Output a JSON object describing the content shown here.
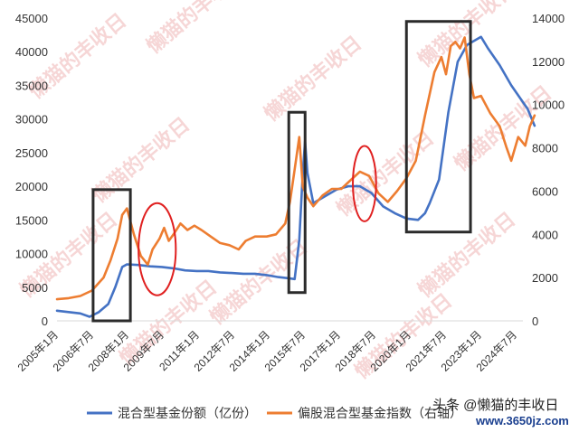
{
  "watermark": {
    "text": "懒猫的丰收日"
  },
  "credit": {
    "text": "头条 @懒猫的丰收日",
    "site": "www.3650jz.com"
  },
  "chart_data": {
    "type": "line",
    "grid": false,
    "legend_position": "bottom",
    "x_ticks": [
      "2005年1月",
      "2006年7月",
      "2008年1月",
      "2009年7月",
      "2011年1月",
      "2012年7月",
      "2014年1月",
      "2015年7月",
      "2017年1月",
      "2018年7月",
      "2020年1月",
      "2021年7月",
      "2023年1月",
      "2024年7月"
    ],
    "y_left": {
      "ticks": [
        0,
        5000,
        10000,
        15000,
        20000,
        25000,
        30000,
        35000,
        40000,
        45000
      ],
      "range": [
        0,
        45000
      ]
    },
    "y_right": {
      "ticks": [
        0,
        2000,
        4000,
        6000,
        8000,
        10000,
        12000,
        14000
      ],
      "range": [
        0,
        14000
      ]
    },
    "x_range": [
      2005.0,
      2025.0
    ],
    "series": [
      {
        "name": "混合型基金份额（亿份）",
        "axis": "left",
        "color": "#4472C4",
        "points": [
          [
            2005.0,
            1500
          ],
          [
            2005.5,
            1300
          ],
          [
            2006.0,
            1100
          ],
          [
            2006.4,
            600
          ],
          [
            2006.8,
            1300
          ],
          [
            2007.2,
            2500
          ],
          [
            2007.5,
            5000
          ],
          [
            2007.8,
            8000
          ],
          [
            2008.0,
            8400
          ],
          [
            2008.5,
            8300
          ],
          [
            2009.0,
            8100
          ],
          [
            2009.5,
            8000
          ],
          [
            2010.0,
            7800
          ],
          [
            2010.5,
            7500
          ],
          [
            2011.0,
            7400
          ],
          [
            2011.5,
            7400
          ],
          [
            2012.0,
            7200
          ],
          [
            2012.5,
            7100
          ],
          [
            2013.0,
            7000
          ],
          [
            2013.5,
            7000
          ],
          [
            2014.0,
            6800
          ],
          [
            2014.5,
            6500
          ],
          [
            2015.0,
            6300
          ],
          [
            2015.2,
            6200
          ],
          [
            2015.4,
            12000
          ],
          [
            2015.55,
            22000
          ],
          [
            2015.65,
            26700
          ],
          [
            2015.75,
            22000
          ],
          [
            2016.0,
            17500
          ],
          [
            2016.5,
            18500
          ],
          [
            2017.0,
            19500
          ],
          [
            2017.5,
            20000
          ],
          [
            2018.0,
            20000
          ],
          [
            2018.5,
            19000
          ],
          [
            2019.0,
            17000
          ],
          [
            2019.5,
            16000
          ],
          [
            2020.0,
            15200
          ],
          [
            2020.5,
            15000
          ],
          [
            2020.8,
            16000
          ],
          [
            2021.0,
            17500
          ],
          [
            2021.4,
            21000
          ],
          [
            2021.8,
            31000
          ],
          [
            2022.2,
            38500
          ],
          [
            2022.6,
            41000
          ],
          [
            2023.0,
            41800
          ],
          [
            2023.2,
            42200
          ],
          [
            2023.5,
            40500
          ],
          [
            2024.0,
            38000
          ],
          [
            2024.5,
            35000
          ],
          [
            2024.9,
            33000
          ],
          [
            2025.2,
            31500
          ],
          [
            2025.5,
            29000
          ]
        ]
      },
      {
        "name": "偏股混合型基金指数（右轴）",
        "axis": "right",
        "color": "#ED7D31",
        "points": [
          [
            2005.0,
            1000
          ],
          [
            2005.5,
            1050
          ],
          [
            2006.0,
            1150
          ],
          [
            2006.5,
            1400
          ],
          [
            2007.0,
            2000
          ],
          [
            2007.3,
            2800
          ],
          [
            2007.6,
            3800
          ],
          [
            2007.8,
            4900
          ],
          [
            2008.0,
            5200
          ],
          [
            2008.3,
            4000
          ],
          [
            2008.6,
            3000
          ],
          [
            2008.9,
            2600
          ],
          [
            2009.1,
            3300
          ],
          [
            2009.4,
            3800
          ],
          [
            2009.6,
            4300
          ],
          [
            2009.8,
            3700
          ],
          [
            2010.0,
            4000
          ],
          [
            2010.3,
            4500
          ],
          [
            2010.6,
            4200
          ],
          [
            2010.9,
            4400
          ],
          [
            2011.2,
            4200
          ],
          [
            2011.6,
            3900
          ],
          [
            2012.0,
            3600
          ],
          [
            2012.4,
            3500
          ],
          [
            2012.8,
            3300
          ],
          [
            2013.1,
            3700
          ],
          [
            2013.5,
            3900
          ],
          [
            2014.0,
            3900
          ],
          [
            2014.4,
            4000
          ],
          [
            2014.8,
            4500
          ],
          [
            2015.0,
            5500
          ],
          [
            2015.2,
            7000
          ],
          [
            2015.4,
            8500
          ],
          [
            2015.55,
            6200
          ],
          [
            2015.75,
            5700
          ],
          [
            2016.0,
            5300
          ],
          [
            2016.4,
            5800
          ],
          [
            2016.8,
            6100
          ],
          [
            2017.2,
            6100
          ],
          [
            2017.6,
            6500
          ],
          [
            2018.0,
            6900
          ],
          [
            2018.4,
            6700
          ],
          [
            2018.8,
            5900
          ],
          [
            2019.2,
            5500
          ],
          [
            2019.6,
            6000
          ],
          [
            2020.0,
            6600
          ],
          [
            2020.4,
            7400
          ],
          [
            2020.8,
            9500
          ],
          [
            2021.0,
            10500
          ],
          [
            2021.2,
            11500
          ],
          [
            2021.5,
            12200
          ],
          [
            2021.7,
            11400
          ],
          [
            2021.9,
            12700
          ],
          [
            2022.1,
            12900
          ],
          [
            2022.3,
            12600
          ],
          [
            2022.5,
            13100
          ],
          [
            2022.7,
            11400
          ],
          [
            2022.9,
            10300
          ],
          [
            2023.2,
            10400
          ],
          [
            2023.6,
            9600
          ],
          [
            2024.0,
            9000
          ],
          [
            2024.3,
            8000
          ],
          [
            2024.5,
            7400
          ],
          [
            2024.8,
            8500
          ],
          [
            2025.1,
            8100
          ],
          [
            2025.3,
            9000
          ],
          [
            2025.5,
            9500
          ]
        ]
      }
    ],
    "annotations": [
      {
        "shape": "rect",
        "x0": 2006.55,
        "x1": 2008.15,
        "y0_left": 0,
        "y1_left": 19500
      },
      {
        "shape": "ellipse",
        "x0": 2008.5,
        "x1": 2010.1,
        "y0_left": 3800,
        "y1_left": 17500
      },
      {
        "shape": "rect",
        "x0": 2014.95,
        "x1": 2015.65,
        "y0_left": 4200,
        "y1_left": 31000
      },
      {
        "shape": "ellipse",
        "x0": 2017.7,
        "x1": 2018.7,
        "y0_left": 14800,
        "y1_left": 26000
      },
      {
        "shape": "rect",
        "x0": 2020.0,
        "x1": 2022.75,
        "y0_left": 13200,
        "y1_left": 44500
      }
    ]
  }
}
